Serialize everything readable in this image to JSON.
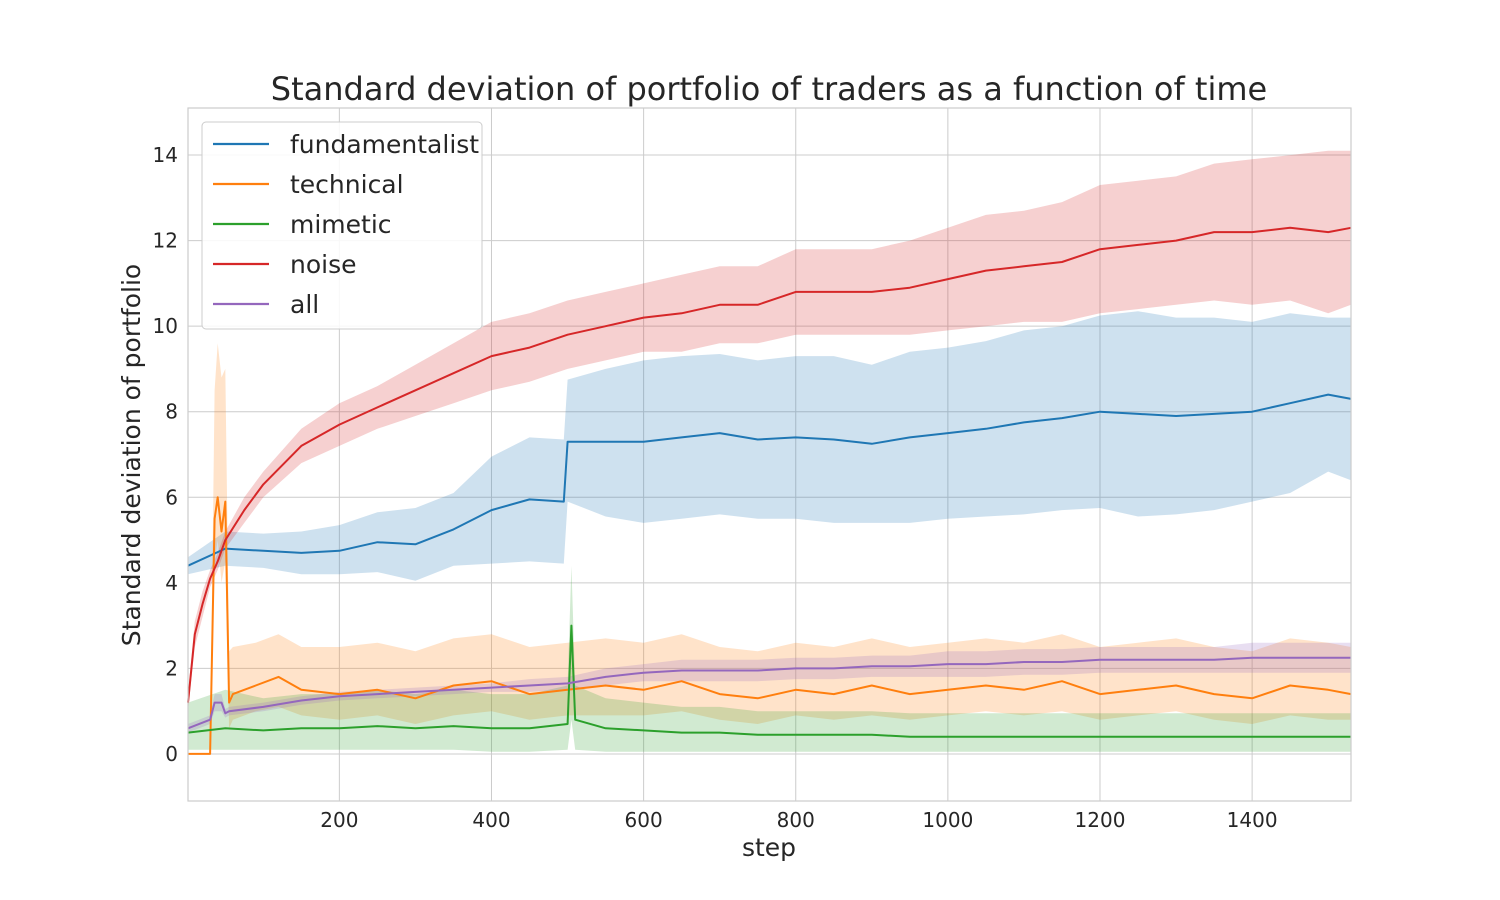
{
  "chart_data": {
    "type": "line",
    "title": "Standard deviation of portfolio of traders as a function of time",
    "xlabel": "step",
    "ylabel": "Standard deviation of portfolio",
    "xlim": [
      1,
      1530
    ],
    "ylim": [
      -1.1,
      15.1
    ],
    "xticks": [
      200,
      400,
      600,
      800,
      1000,
      1200,
      1400
    ],
    "yticks": [
      0,
      2,
      4,
      6,
      8,
      10,
      12,
      14
    ],
    "grid": true,
    "legend_position": "top-left",
    "series": [
      {
        "name": "fundamentalist",
        "color": "#1f77b4",
        "x": [
          1,
          50,
          100,
          150,
          200,
          250,
          300,
          350,
          400,
          450,
          495,
          500,
          550,
          600,
          650,
          700,
          750,
          800,
          850,
          900,
          950,
          1000,
          1050,
          1100,
          1150,
          1200,
          1250,
          1300,
          1350,
          1400,
          1450,
          1500,
          1530
        ],
        "values": [
          4.4,
          4.8,
          4.75,
          4.7,
          4.75,
          4.95,
          4.9,
          5.25,
          5.7,
          5.95,
          5.9,
          7.3,
          7.3,
          7.3,
          7.4,
          7.5,
          7.35,
          7.4,
          7.35,
          7.25,
          7.4,
          7.5,
          7.6,
          7.75,
          7.85,
          8.0,
          7.95,
          7.9,
          7.95,
          8.0,
          8.2,
          8.4,
          8.3
        ],
        "lower": [
          4.2,
          4.4,
          4.35,
          4.2,
          4.2,
          4.25,
          4.05,
          4.4,
          4.45,
          4.5,
          4.45,
          5.9,
          5.55,
          5.4,
          5.5,
          5.6,
          5.5,
          5.5,
          5.4,
          5.4,
          5.4,
          5.5,
          5.55,
          5.6,
          5.7,
          5.75,
          5.55,
          5.6,
          5.7,
          5.9,
          6.1,
          6.6,
          6.4
        ],
        "upper": [
          4.6,
          5.2,
          5.15,
          5.2,
          5.35,
          5.65,
          5.75,
          6.1,
          6.95,
          7.4,
          7.35,
          8.75,
          9.0,
          9.2,
          9.3,
          9.35,
          9.2,
          9.3,
          9.3,
          9.1,
          9.4,
          9.5,
          9.65,
          9.9,
          10.0,
          10.25,
          10.35,
          10.2,
          10.2,
          10.1,
          10.3,
          10.2,
          10.2
        ]
      },
      {
        "name": "technical",
        "color": "#ff7f0e",
        "x": [
          1,
          30,
          36,
          40,
          45,
          50,
          55,
          60,
          90,
          120,
          150,
          200,
          250,
          300,
          350,
          400,
          450,
          500,
          550,
          600,
          650,
          700,
          750,
          800,
          850,
          900,
          950,
          1000,
          1050,
          1100,
          1150,
          1200,
          1250,
          1300,
          1350,
          1400,
          1450,
          1500,
          1530
        ],
        "values": [
          0,
          0,
          5.5,
          6.0,
          5.2,
          5.9,
          1.2,
          1.4,
          1.6,
          1.8,
          1.5,
          1.4,
          1.5,
          1.3,
          1.6,
          1.7,
          1.4,
          1.5,
          1.6,
          1.5,
          1.7,
          1.4,
          1.3,
          1.5,
          1.4,
          1.6,
          1.4,
          1.5,
          1.6,
          1.5,
          1.7,
          1.4,
          1.5,
          1.6,
          1.4,
          1.3,
          1.6,
          1.5,
          1.4
        ],
        "lower": [
          0,
          0,
          4.5,
          5.0,
          4.0,
          4.5,
          0.6,
          0.8,
          1.0,
          1.1,
          0.9,
          0.8,
          0.9,
          0.7,
          0.9,
          1.0,
          0.8,
          0.9,
          0.9,
          0.9,
          1.0,
          0.8,
          0.7,
          0.9,
          0.8,
          0.9,
          0.8,
          0.9,
          1.0,
          0.9,
          1.0,
          0.8,
          0.9,
          1.0,
          0.8,
          0.7,
          0.9,
          0.8,
          0.8
        ],
        "upper": [
          0,
          0,
          8.5,
          9.6,
          8.8,
          9.0,
          2.4,
          2.5,
          2.6,
          2.8,
          2.5,
          2.5,
          2.6,
          2.4,
          2.7,
          2.8,
          2.5,
          2.6,
          2.7,
          2.6,
          2.8,
          2.5,
          2.4,
          2.6,
          2.5,
          2.7,
          2.5,
          2.6,
          2.7,
          2.6,
          2.8,
          2.5,
          2.6,
          2.7,
          2.5,
          2.4,
          2.7,
          2.6,
          2.5
        ]
      },
      {
        "name": "mimetic",
        "color": "#2ca02c",
        "x": [
          1,
          50,
          100,
          150,
          200,
          250,
          300,
          350,
          400,
          450,
          500,
          505,
          510,
          550,
          600,
          650,
          700,
          750,
          800,
          850,
          900,
          950,
          1000,
          1050,
          1100,
          1150,
          1200,
          1250,
          1300,
          1350,
          1400,
          1450,
          1500,
          1530
        ],
        "values": [
          0.5,
          0.6,
          0.55,
          0.6,
          0.6,
          0.65,
          0.6,
          0.65,
          0.6,
          0.6,
          0.7,
          3.0,
          0.8,
          0.6,
          0.55,
          0.5,
          0.5,
          0.45,
          0.45,
          0.45,
          0.45,
          0.4,
          0.4,
          0.4,
          0.4,
          0.4,
          0.4,
          0.4,
          0.4,
          0.4,
          0.4,
          0.4,
          0.4,
          0.4
        ],
        "lower": [
          0.1,
          0.1,
          0.1,
          0.1,
          0.1,
          0.1,
          0.1,
          0.1,
          0.05,
          0.05,
          0.1,
          0.8,
          0.1,
          0.05,
          0.05,
          0.05,
          0.05,
          0.05,
          0.05,
          0.05,
          0.05,
          0.05,
          0.05,
          0.05,
          0.05,
          0.05,
          0.05,
          0.05,
          0.05,
          0.05,
          0.05,
          0.05,
          0.05,
          0.05
        ],
        "upper": [
          1.2,
          1.5,
          1.3,
          1.4,
          1.4,
          1.5,
          1.4,
          1.5,
          1.4,
          1.4,
          1.6,
          4.4,
          1.6,
          1.3,
          1.2,
          1.1,
          1.1,
          1.0,
          1.0,
          1.0,
          1.0,
          0.95,
          0.95,
          0.95,
          0.95,
          0.95,
          0.95,
          0.95,
          0.95,
          0.95,
          0.95,
          0.95,
          0.95,
          0.95
        ]
      },
      {
        "name": "noise",
        "color": "#d62728",
        "x": [
          1,
          10,
          20,
          30,
          40,
          50,
          75,
          100,
          150,
          200,
          250,
          300,
          350,
          400,
          450,
          500,
          550,
          600,
          650,
          700,
          750,
          800,
          850,
          900,
          950,
          1000,
          1050,
          1100,
          1150,
          1200,
          1250,
          1300,
          1350,
          1400,
          1450,
          1500,
          1530
        ],
        "values": [
          1.2,
          2.8,
          3.5,
          4.1,
          4.5,
          5.0,
          5.7,
          6.3,
          7.2,
          7.7,
          8.1,
          8.5,
          8.9,
          9.3,
          9.5,
          9.8,
          10.0,
          10.2,
          10.3,
          10.5,
          10.5,
          10.8,
          10.8,
          10.8,
          10.9,
          11.1,
          11.3,
          11.4,
          11.5,
          11.8,
          11.9,
          12.0,
          12.2,
          12.2,
          12.3,
          12.2,
          12.3
        ],
        "lower": [
          1.0,
          2.5,
          3.2,
          3.9,
          4.3,
          4.8,
          5.4,
          6.0,
          6.8,
          7.2,
          7.6,
          7.9,
          8.2,
          8.5,
          8.7,
          9.0,
          9.2,
          9.4,
          9.4,
          9.6,
          9.6,
          9.8,
          9.8,
          9.8,
          9.8,
          9.9,
          10.0,
          10.1,
          10.1,
          10.3,
          10.4,
          10.5,
          10.6,
          10.5,
          10.6,
          10.3,
          10.5
        ],
        "upper": [
          1.4,
          3.1,
          3.8,
          4.3,
          4.7,
          5.2,
          6.0,
          6.6,
          7.6,
          8.2,
          8.6,
          9.1,
          9.6,
          10.1,
          10.3,
          10.6,
          10.8,
          11.0,
          11.2,
          11.4,
          11.4,
          11.8,
          11.8,
          11.8,
          12.0,
          12.3,
          12.6,
          12.7,
          12.9,
          13.3,
          13.4,
          13.5,
          13.8,
          13.9,
          14.0,
          14.1,
          14.1
        ]
      },
      {
        "name": "all",
        "color": "#9467bd",
        "x": [
          1,
          30,
          36,
          45,
          50,
          55,
          100,
          150,
          200,
          250,
          300,
          350,
          400,
          450,
          500,
          550,
          600,
          650,
          700,
          750,
          800,
          850,
          900,
          950,
          1000,
          1050,
          1100,
          1150,
          1200,
          1250,
          1300,
          1350,
          1400,
          1450,
          1500,
          1530
        ],
        "values": [
          0.6,
          0.8,
          1.2,
          1.2,
          0.95,
          1.0,
          1.1,
          1.25,
          1.35,
          1.4,
          1.45,
          1.5,
          1.55,
          1.6,
          1.65,
          1.8,
          1.9,
          1.95,
          1.95,
          1.95,
          2.0,
          2.0,
          2.05,
          2.05,
          2.1,
          2.1,
          2.15,
          2.15,
          2.2,
          2.2,
          2.2,
          2.2,
          2.25,
          2.25,
          2.25,
          2.25
        ],
        "lower": [
          0.5,
          0.7,
          1.0,
          1.0,
          0.85,
          0.9,
          1.0,
          1.15,
          1.25,
          1.3,
          1.35,
          1.4,
          1.45,
          1.45,
          1.5,
          1.6,
          1.7,
          1.7,
          1.7,
          1.7,
          1.75,
          1.75,
          1.8,
          1.8,
          1.8,
          1.8,
          1.85,
          1.85,
          1.9,
          1.9,
          1.9,
          1.9,
          1.9,
          1.9,
          1.9,
          1.9
        ],
        "upper": [
          0.7,
          0.9,
          1.4,
          1.4,
          1.05,
          1.1,
          1.2,
          1.35,
          1.45,
          1.5,
          1.55,
          1.6,
          1.65,
          1.75,
          1.8,
          2.0,
          2.1,
          2.2,
          2.2,
          2.2,
          2.25,
          2.25,
          2.3,
          2.3,
          2.4,
          2.4,
          2.45,
          2.45,
          2.5,
          2.5,
          2.5,
          2.5,
          2.6,
          2.6,
          2.6,
          2.6
        ]
      }
    ]
  }
}
